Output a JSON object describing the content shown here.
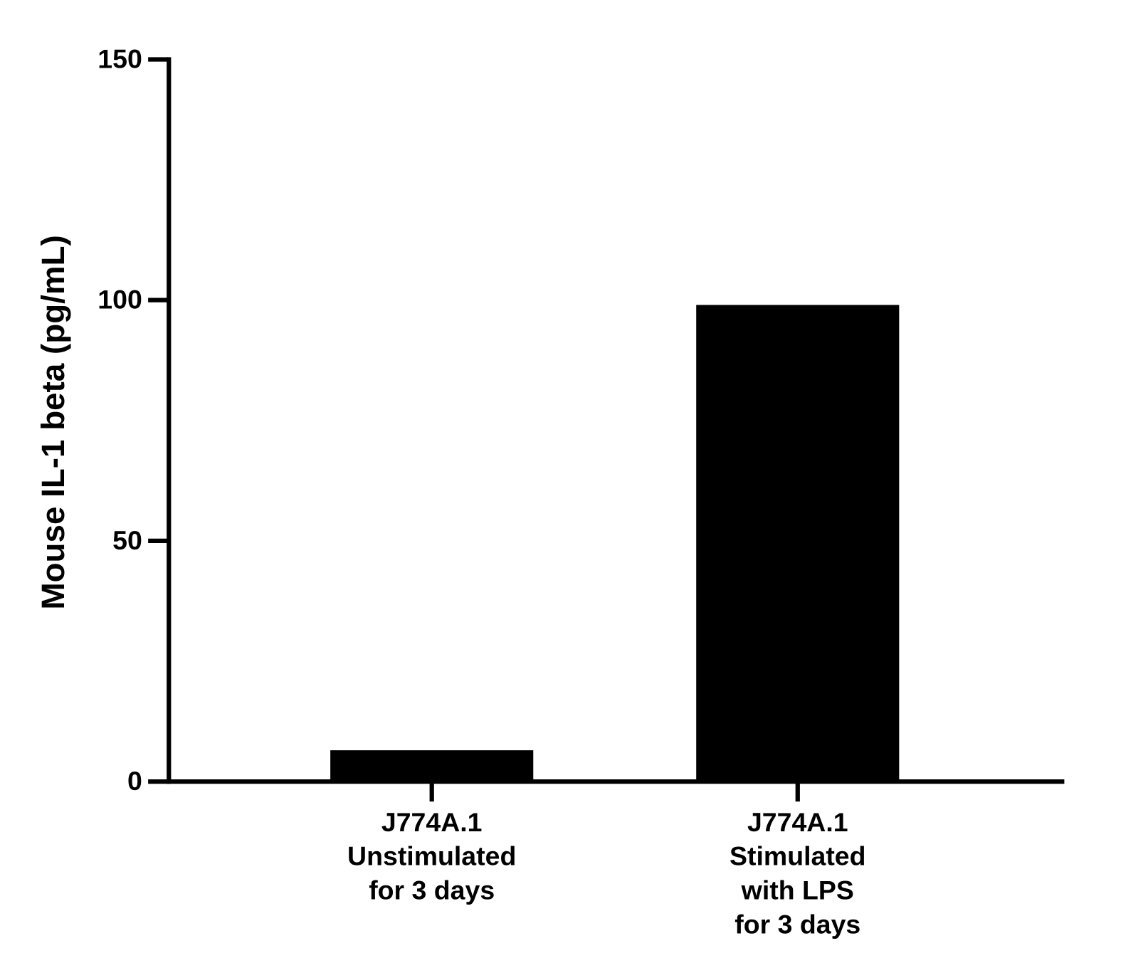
{
  "chart_data": {
    "type": "bar",
    "y_label": "Mouse IL-1 beta (pg/mL)",
    "categories": [
      "J774A.1\nUnstimulated\nfor 3 days",
      "J774A.1\nStimulated\nwith LPS\nfor 3 days"
    ],
    "values": [
      6.5,
      99
    ],
    "color": "#000000",
    "ylim": [
      0,
      150
    ],
    "yticks": [
      0,
      50,
      100,
      150
    ]
  }
}
